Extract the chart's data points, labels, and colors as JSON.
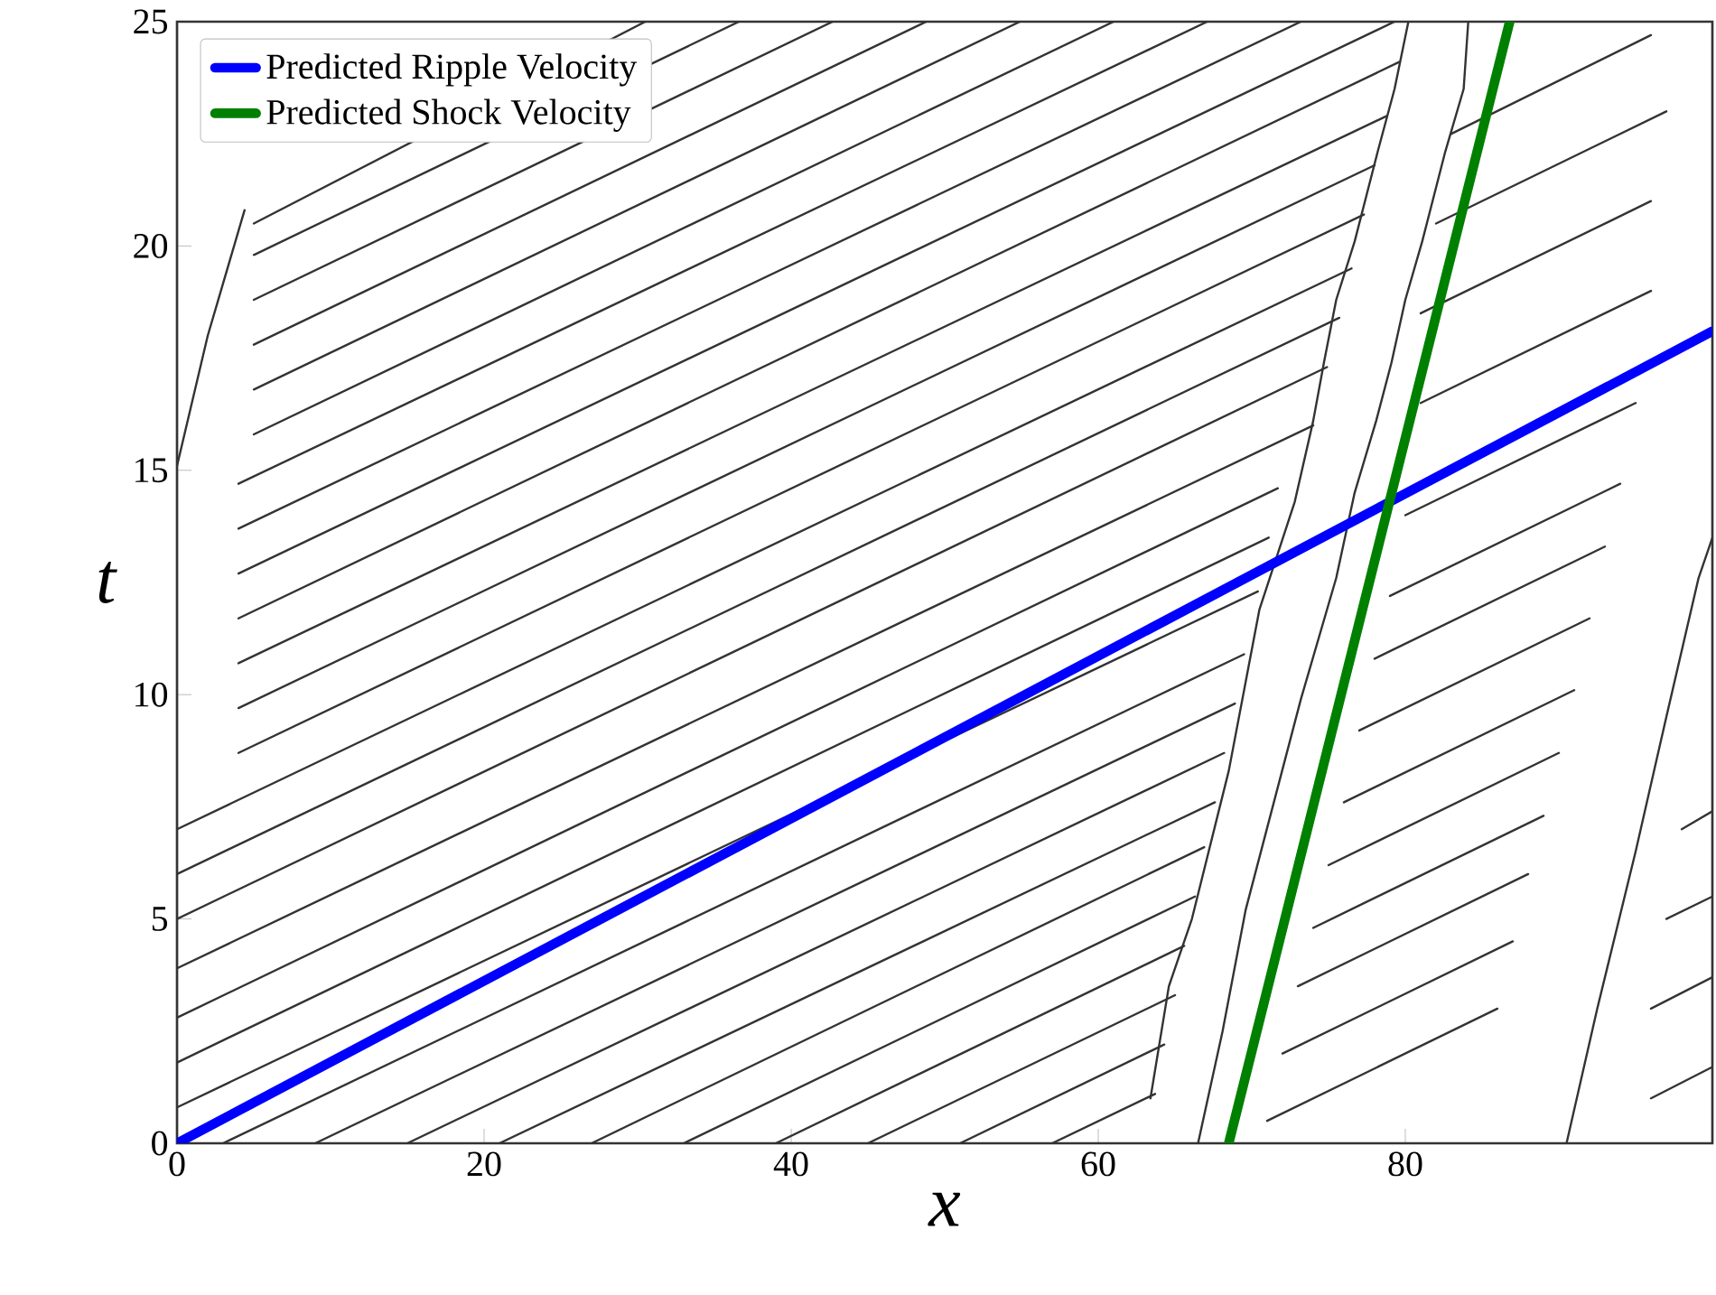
{
  "chart_data": {
    "type": "line",
    "xlabel": "x",
    "ylabel": "t",
    "xlim": [
      0,
      100
    ],
    "ylim": [
      0,
      25
    ],
    "xticks": [
      0,
      20,
      40,
      60,
      80
    ],
    "yticks": [
      0,
      5,
      10,
      15,
      20,
      25
    ],
    "legend": "top left",
    "marker": "none",
    "line_style": "solid",
    "series": [
      {
        "x": [
          3,
          69.5
        ],
        "values": [
          0,
          10.9
        ],
        "color": "#333333"
      },
      {
        "x": [
          9,
          68.9
        ],
        "values": [
          0,
          9.8
        ],
        "color": "#333333"
      },
      {
        "x": [
          15,
          68.2
        ],
        "values": [
          0,
          8.7
        ],
        "color": "#333333"
      },
      {
        "x": [
          21,
          67.6
        ],
        "values": [
          0,
          7.6
        ],
        "color": "#333333"
      },
      {
        "x": [
          27,
          66.9
        ],
        "values": [
          0,
          6.6
        ],
        "color": "#333333"
      },
      {
        "x": [
          33,
          66.3
        ],
        "values": [
          0,
          5.5
        ],
        "color": "#333333"
      },
      {
        "x": [
          39,
          65.6
        ],
        "values": [
          0,
          4.4
        ],
        "color": "#333333"
      },
      {
        "x": [
          45,
          65.0
        ],
        "values": [
          0,
          3.3
        ],
        "color": "#333333"
      },
      {
        "x": [
          51,
          64.3
        ],
        "values": [
          0,
          2.2
        ],
        "color": "#333333"
      },
      {
        "x": [
          57,
          63.7
        ],
        "values": [
          0,
          1.1
        ],
        "color": "#333333"
      },
      {
        "x": [
          0,
          70.4
        ],
        "values": [
          0.8,
          12.3
        ],
        "color": "#333333"
      },
      {
        "x": [
          0,
          71.1
        ],
        "values": [
          1.8,
          13.5
        ],
        "color": "#333333"
      },
      {
        "x": [
          0,
          71.7
        ],
        "values": [
          2.8,
          14.6
        ],
        "color": "#333333"
      },
      {
        "x": [
          0,
          74.0
        ],
        "values": [
          3.9,
          16.0
        ],
        "color": "#333333"
      },
      {
        "x": [
          0,
          74.9
        ],
        "values": [
          5.0,
          17.3
        ],
        "color": "#333333"
      },
      {
        "x": [
          0,
          75.7
        ],
        "values": [
          6.0,
          18.4
        ],
        "color": "#333333"
      },
      {
        "x": [
          0,
          76.5
        ],
        "values": [
          7.0,
          19.5
        ],
        "color": "#333333"
      },
      {
        "x": [
          4,
          77.3
        ],
        "values": [
          8.7,
          20.7
        ],
        "color": "#333333"
      },
      {
        "x": [
          4,
          78.0
        ],
        "values": [
          9.7,
          21.8
        ],
        "color": "#333333"
      },
      {
        "x": [
          4,
          78.8
        ],
        "values": [
          10.7,
          22.9
        ],
        "color": "#333333"
      },
      {
        "x": [
          4,
          79.6
        ],
        "values": [
          11.7,
          24.1
        ],
        "color": "#333333"
      },
      {
        "x": [
          4,
          79.3
        ],
        "values": [
          12.7,
          25
        ],
        "color": "#333333"
      },
      {
        "x": [
          4,
          73.2
        ],
        "values": [
          13.7,
          25
        ],
        "color": "#333333"
      },
      {
        "x": [
          4,
          67.1
        ],
        "values": [
          14.7,
          25
        ],
        "color": "#333333"
      },
      {
        "x": [
          5,
          61.0
        ],
        "values": [
          15.8,
          25
        ],
        "color": "#333333"
      },
      {
        "x": [
          5,
          54.9
        ],
        "values": [
          16.8,
          25
        ],
        "color": "#333333"
      },
      {
        "x": [
          5,
          48.8
        ],
        "values": [
          17.8,
          25
        ],
        "color": "#333333"
      },
      {
        "x": [
          5,
          42.7
        ],
        "values": [
          18.8,
          25
        ],
        "color": "#333333"
      },
      {
        "x": [
          5,
          36.6
        ],
        "values": [
          19.8,
          25
        ],
        "color": "#333333"
      },
      {
        "x": [
          5,
          30.5
        ],
        "values": [
          20.5,
          25
        ],
        "color": "#333333"
      },
      {
        "x": [
          0,
          2,
          4.4
        ],
        "values": [
          15.1,
          18,
          20.8
        ],
        "color": "#333333"
      },
      {
        "x": [
          63.4,
          64.6,
          66.1,
          68.5,
          70.5,
          72.8,
          74.0,
          74.7,
          75.5,
          76.7,
          78.2,
          79.3,
          80.2
        ],
        "values": [
          1.0,
          3.5,
          5.0,
          8.3,
          11.9,
          14.3,
          16.1,
          17.4,
          18.8,
          20.1,
          22.1,
          23.5,
          25
        ],
        "color": "#333333"
      },
      {
        "x": [
          66.5,
          68.1,
          69.6,
          73.2,
          75.5,
          76.7,
          78.1,
          79.1,
          80.0,
          81.1,
          82.6,
          83.8,
          84.1
        ],
        "values": [
          0,
          2.5,
          5.2,
          9.9,
          12.6,
          14.5,
          16.1,
          17.4,
          18.8,
          20.1,
          22.1,
          23.5,
          25
        ],
        "color": "#333333"
      },
      {
        "x": [
          90.5,
          92.5,
          95,
          97,
          99.1,
          100
        ],
        "values": [
          0,
          3,
          6.5,
          9.5,
          12.6,
          13.5
        ],
        "color": "#333333"
      },
      {
        "x": [
          71,
          86
        ],
        "values": [
          0.5,
          3.0
        ],
        "color": "#333333"
      },
      {
        "x": [
          72,
          87
        ],
        "values": [
          2.0,
          4.5
        ],
        "color": "#333333"
      },
      {
        "x": [
          73,
          88
        ],
        "values": [
          3.5,
          6.0
        ],
        "color": "#333333"
      },
      {
        "x": [
          74,
          89
        ],
        "values": [
          4.8,
          7.3
        ],
        "color": "#333333"
      },
      {
        "x": [
          75,
          90
        ],
        "values": [
          6.2,
          8.7
        ],
        "color": "#333333"
      },
      {
        "x": [
          76,
          91
        ],
        "values": [
          7.6,
          10.1
        ],
        "color": "#333333"
      },
      {
        "x": [
          77,
          92
        ],
        "values": [
          9.2,
          11.7
        ],
        "color": "#333333"
      },
      {
        "x": [
          78,
          93
        ],
        "values": [
          10.8,
          13.3
        ],
        "color": "#333333"
      },
      {
        "x": [
          79,
          94
        ],
        "values": [
          12.2,
          14.7
        ],
        "color": "#333333"
      },
      {
        "x": [
          80,
          95
        ],
        "values": [
          14.0,
          16.5
        ],
        "color": "#333333"
      },
      {
        "x": [
          81,
          96
        ],
        "values": [
          16.5,
          19.0
        ],
        "color": "#333333"
      },
      {
        "x": [
          81,
          96
        ],
        "values": [
          18.5,
          21.0
        ],
        "color": "#333333"
      },
      {
        "x": [
          82,
          97
        ],
        "values": [
          20.5,
          23.0
        ],
        "color": "#333333"
      },
      {
        "x": [
          83,
          96
        ],
        "values": [
          22.5,
          24.7
        ],
        "color": "#333333"
      },
      {
        "x": [
          96,
          100
        ],
        "values": [
          1,
          1.7
        ],
        "color": "#333333"
      },
      {
        "x": [
          96,
          100
        ],
        "values": [
          3,
          3.7
        ],
        "color": "#333333"
      },
      {
        "x": [
          97,
          100
        ],
        "values": [
          5,
          5.5
        ],
        "color": "#333333"
      },
      {
        "x": [
          98,
          100
        ],
        "values": [
          7,
          7.4
        ],
        "color": "#333333"
      },
      {
        "name": "Predicted Ripple Velocity",
        "x": [
          0,
          100
        ],
        "values": [
          0,
          18.1
        ],
        "color": "#0000ff"
      },
      {
        "name": "Predicted Shock Velocity",
        "x": [
          68.5,
          86.8
        ],
        "values": [
          0,
          25
        ],
        "color": "#008000"
      }
    ]
  }
}
